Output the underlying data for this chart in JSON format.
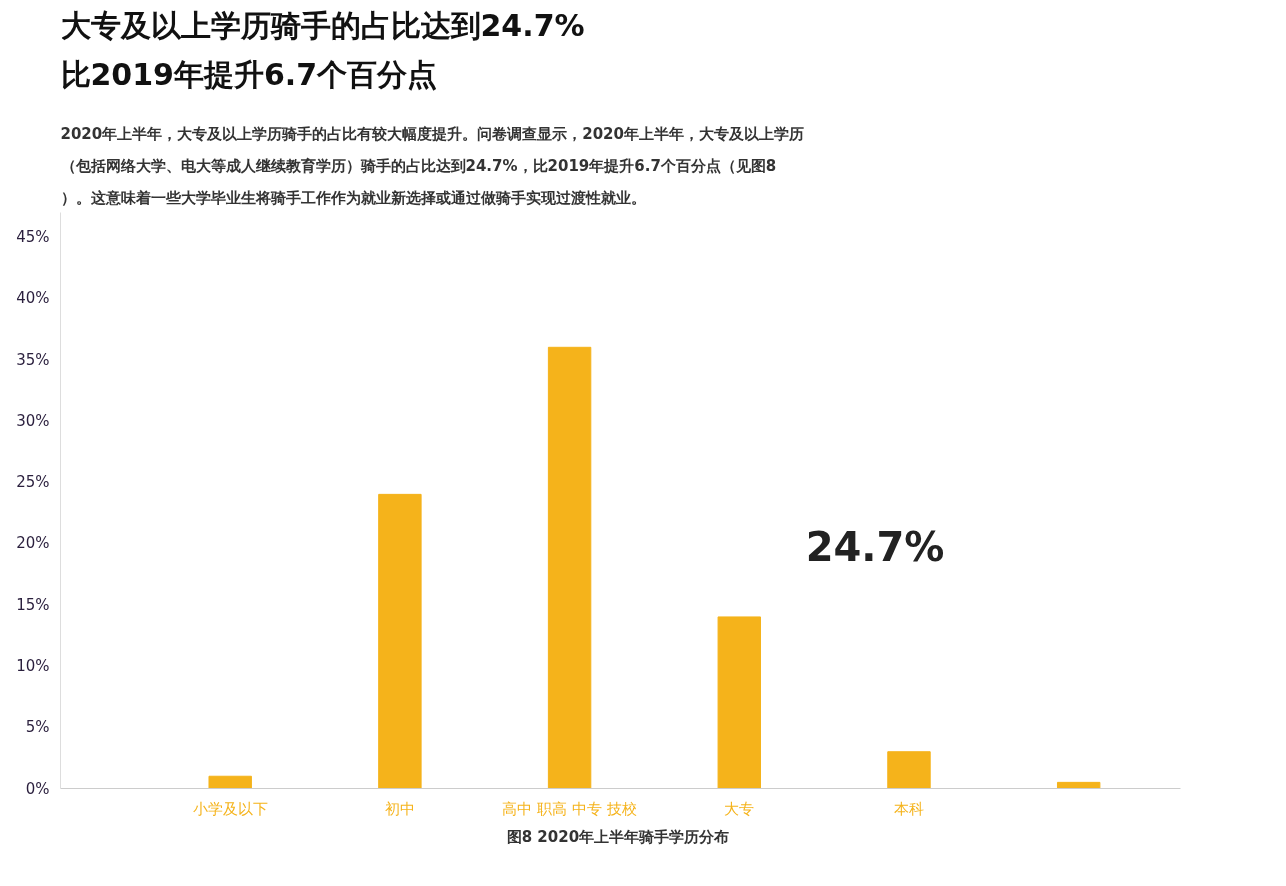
{
  "chart_data": {
    "type": "bar",
    "title": "大专及以上学历骑手的占比达到24.7%\n比2019年提升6.7个百分点",
    "subtitle": "2020年上半年，大专及以上学历骑手的占比有较大幅度提升。问卷调查显示，2020年上半年，大专及以上学历（包括网络大学、电大等成人继续教育学历）骑手的占比达到24.7%，比2019年提升6.7个百分点（见图8）。这意味着一些大学毕业生将骑手工作作为就业新选择或通过做骑手实现过渡性就业。",
    "categories": [
      "小学及以下",
      "初中",
      "高中 职高 中专 技校",
      "大专",
      "本科",
      null
    ],
    "values": [
      1,
      24,
      36,
      14,
      3,
      0.5
    ],
    "color": "#f5b31b",
    "ylim": [
      0,
      47
    ],
    "yticks": [
      {
        "value": 0,
        "label": "0%"
      },
      {
        "value": 5,
        "label": "5%"
      },
      {
        "value": 10,
        "label": "10%"
      },
      {
        "value": 15,
        "label": "15%"
      },
      {
        "value": 20,
        "label": "20%"
      },
      {
        "value": 25,
        "label": "25%"
      },
      {
        "value": 30,
        "label": "30%"
      },
      {
        "value": 35,
        "label": "35%"
      },
      {
        "value": 40,
        "label": "40%"
      },
      {
        "value": 45,
        "label": "45%"
      }
    ],
    "grid": false,
    "annotations": [
      "24.7%",
      "图8  2020年上半年骑手学历分布"
    ]
  }
}
